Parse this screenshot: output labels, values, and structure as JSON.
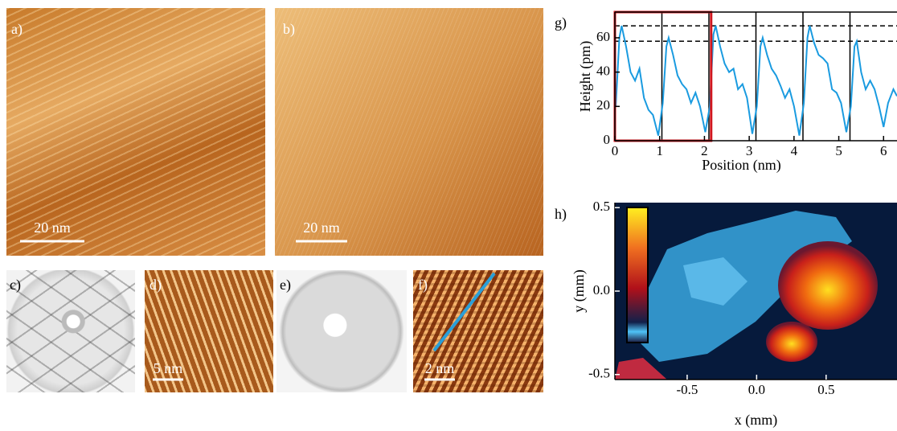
{
  "panels": {
    "a": {
      "label": "a)",
      "scale": "20 nm"
    },
    "b": {
      "label": "b)",
      "scale": "20 nm"
    },
    "c": {
      "label": "c)"
    },
    "d": {
      "label": "d)",
      "scale": "5 nm"
    },
    "e": {
      "label": "e)"
    },
    "f": {
      "label": "f)",
      "scale": "2 nm"
    }
  },
  "chart_data": [
    {
      "type": "line",
      "panel_label": "g)",
      "xlabel": "Position (nm)",
      "ylabel": "Height (pm)",
      "xlim": [
        0,
        6.3
      ],
      "ylim": [
        0,
        75
      ],
      "xticks": [
        0,
        1,
        2,
        3,
        4,
        5,
        6
      ],
      "yticks": [
        0,
        20,
        40,
        60
      ],
      "hlines": [
        67,
        58
      ],
      "vlines": [
        1.05,
        2.1,
        3.15,
        4.2,
        5.25
      ],
      "highlight": [
        0,
        2.15
      ],
      "highlight_color": "#d0161e",
      "color": "#1a9be0",
      "x": [
        0.02,
        0.1,
        0.15,
        0.25,
        0.35,
        0.45,
        0.55,
        0.65,
        0.75,
        0.85,
        0.97,
        1.07,
        1.15,
        1.2,
        1.3,
        1.4,
        1.5,
        1.6,
        1.7,
        1.8,
        1.9,
        2.02,
        2.12,
        2.2,
        2.25,
        2.35,
        2.45,
        2.55,
        2.65,
        2.75,
        2.85,
        2.95,
        3.07,
        3.17,
        3.25,
        3.3,
        3.4,
        3.5,
        3.6,
        3.7,
        3.8,
        3.9,
        4.0,
        4.12,
        4.22,
        4.3,
        4.35,
        4.45,
        4.55,
        4.65,
        4.75,
        4.85,
        4.95,
        5.05,
        5.17,
        5.27,
        5.35,
        5.4,
        5.5,
        5.6,
        5.7,
        5.8,
        5.9,
        6.0,
        6.1,
        6.22,
        6.3
      ],
      "values": [
        20,
        60,
        67,
        55,
        40,
        35,
        42,
        25,
        18,
        15,
        3,
        22,
        55,
        60,
        50,
        38,
        33,
        30,
        22,
        28,
        20,
        5,
        20,
        62,
        67,
        55,
        45,
        40,
        42,
        30,
        33,
        25,
        4,
        20,
        55,
        60,
        50,
        42,
        38,
        32,
        25,
        30,
        20,
        3,
        22,
        60,
        67,
        57,
        50,
        48,
        45,
        30,
        28,
        22,
        5,
        20,
        55,
        58,
        40,
        30,
        35,
        30,
        20,
        8,
        22,
        30,
        26
      ]
    },
    {
      "type": "heatmap",
      "panel_label": "h)",
      "xlabel": "x (mm)",
      "ylabel": "y (mm)",
      "xlim": [
        -1.02,
        1.01
      ],
      "ylim": [
        -0.53,
        0.53
      ],
      "xticks": [
        -0.5,
        {
          "value": 0,
          "label": "0.0"
        },
        0.5
      ],
      "yticks": [
        -0.5,
        {
          "value": 0,
          "label": "0.0"
        },
        0.5
      ]
    }
  ]
}
